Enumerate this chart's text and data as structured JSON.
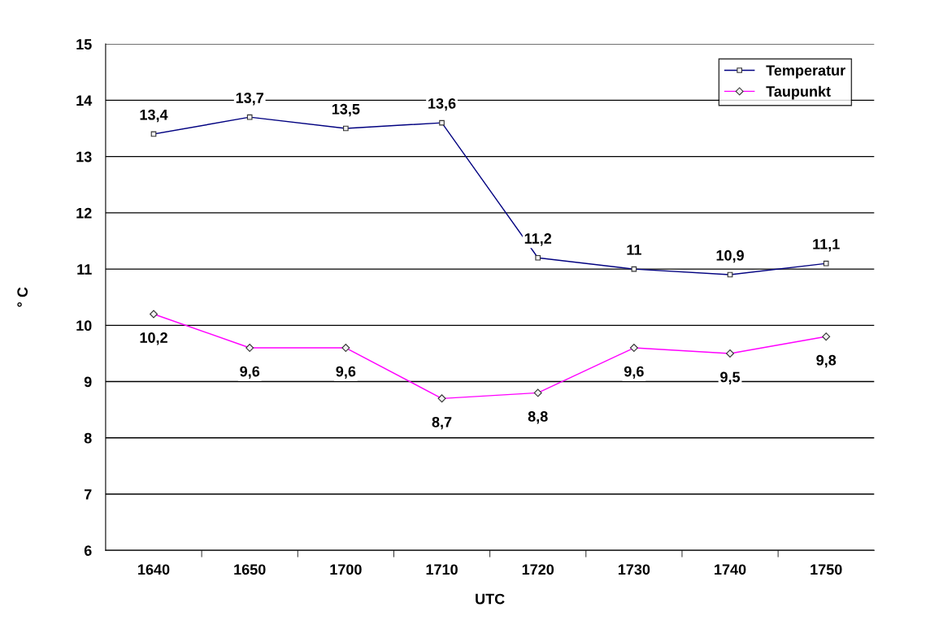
{
  "chart_data": {
    "type": "line",
    "xlabel": "UTC",
    "ylabel": "° C",
    "categories": [
      "1640",
      "1650",
      "1700",
      "1710",
      "1720",
      "1730",
      "1740",
      "1750"
    ],
    "ylim": [
      6,
      15
    ],
    "yticks": [
      6,
      7,
      8,
      9,
      10,
      11,
      12,
      13,
      14,
      15
    ],
    "grid": "y",
    "legend": "top right",
    "series": [
      {
        "name": "Temperatur",
        "color": "#000080",
        "marker": "square",
        "values": [
          13.4,
          13.7,
          13.5,
          13.6,
          11.2,
          11.0,
          10.9,
          11.1
        ],
        "value_labels": [
          "13,4",
          "13,7",
          "13,5",
          "13,6",
          "11,2",
          "11",
          "10,9",
          "11,1"
        ]
      },
      {
        "name": "Taupunkt",
        "color": "#ff00ff",
        "marker": "diamond",
        "values": [
          10.2,
          9.6,
          9.6,
          8.7,
          8.8,
          9.6,
          9.5,
          9.8
        ],
        "value_labels": [
          "10,2",
          "9,6",
          "9,6",
          "8,7",
          "8,8",
          "9,6",
          "9,5",
          "9,8"
        ]
      }
    ]
  }
}
